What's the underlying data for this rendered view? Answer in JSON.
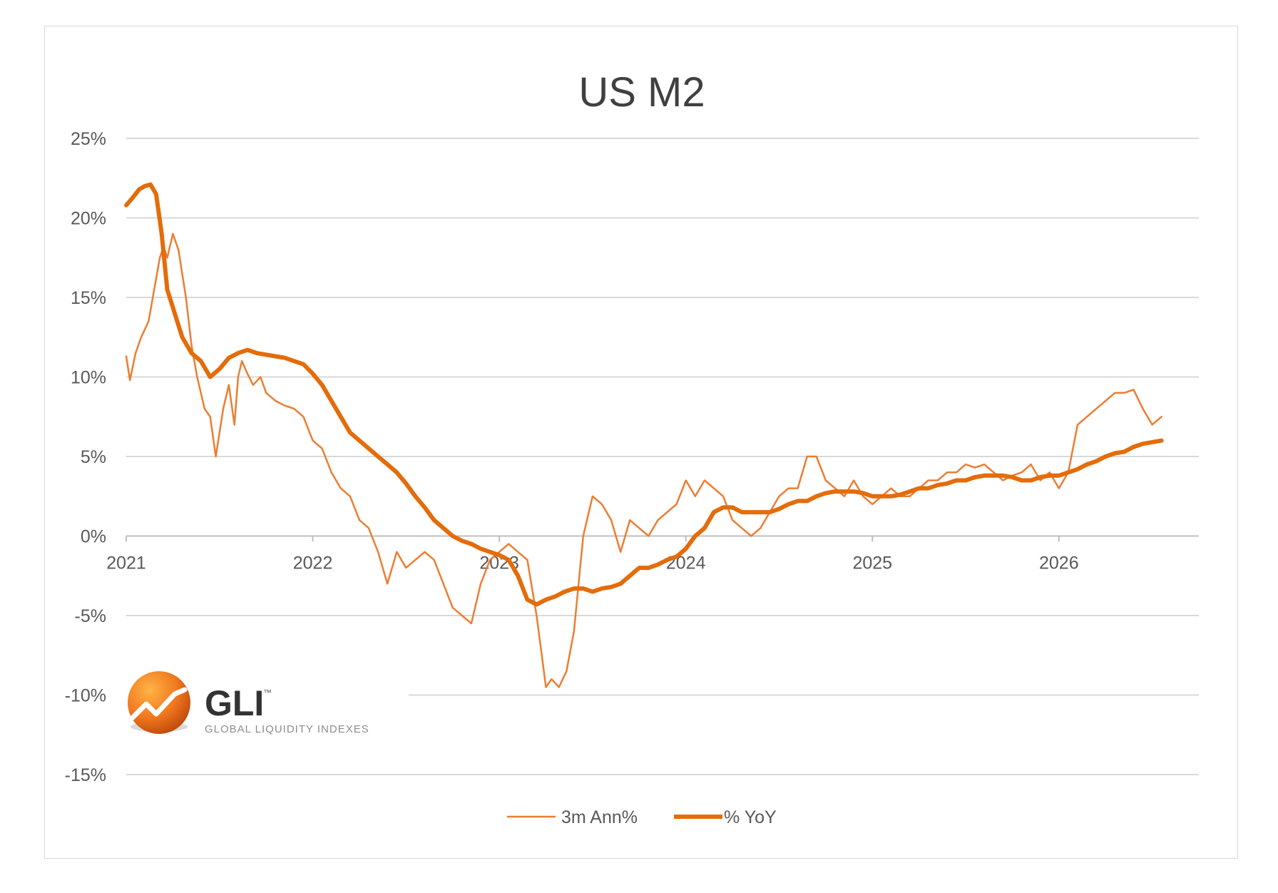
{
  "chart_data": {
    "type": "line",
    "title": "US M2",
    "xlabel": "",
    "ylabel": "",
    "x_ticks": [
      "2021",
      "2022",
      "2023",
      "2024",
      "2025",
      "2026"
    ],
    "y_ticks": [
      "25%",
      "20%",
      "15%",
      "10%",
      "5%",
      "0%",
      "-5%",
      "-10%",
      "-15%"
    ],
    "ylim": [
      -15,
      25
    ],
    "xlim": [
      2021.0,
      2026.75
    ],
    "grid": true,
    "legend_position": "bottom",
    "colors": {
      "three_month": "#ed7d31",
      "yoy": "#e46c0a"
    },
    "series": [
      {
        "name": "3m Ann%",
        "x": [
          2021.0,
          2021.02,
          2021.05,
          2021.08,
          2021.12,
          2021.15,
          2021.18,
          2021.2,
          2021.22,
          2021.25,
          2021.28,
          2021.32,
          2021.35,
          2021.38,
          2021.42,
          2021.45,
          2021.48,
          2021.52,
          2021.55,
          2021.58,
          2021.6,
          2021.62,
          2021.65,
          2021.68,
          2021.72,
          2021.75,
          2021.8,
          2021.85,
          2021.9,
          2021.95,
          2022.0,
          2022.05,
          2022.1,
          2022.15,
          2022.2,
          2022.25,
          2022.3,
          2022.35,
          2022.4,
          2022.45,
          2022.5,
          2022.55,
          2022.6,
          2022.65,
          2022.7,
          2022.75,
          2022.8,
          2022.85,
          2022.9,
          2022.95,
          2023.0,
          2023.05,
          2023.1,
          2023.15,
          2023.2,
          2023.25,
          2023.28,
          2023.32,
          2023.36,
          2023.4,
          2023.45,
          2023.5,
          2023.55,
          2023.6,
          2023.65,
          2023.7,
          2023.75,
          2023.8,
          2023.85,
          2023.9,
          2023.95,
          2024.0,
          2024.05,
          2024.1,
          2024.15,
          2024.2,
          2024.25,
          2024.3,
          2024.35,
          2024.4,
          2024.45,
          2024.5,
          2024.55,
          2024.6,
          2024.65,
          2024.7,
          2024.75,
          2024.8,
          2024.85,
          2024.9,
          2024.95,
          2025.0,
          2025.05,
          2025.1,
          2025.15,
          2025.2,
          2025.25,
          2025.3,
          2025.35,
          2025.4,
          2025.45,
          2025.5,
          2025.55,
          2025.6,
          2025.65,
          2025.7,
          2025.75,
          2025.8,
          2025.85,
          2025.9,
          2025.95,
          2026.0,
          2026.05,
          2026.1,
          2026.15,
          2026.2,
          2026.25,
          2026.3,
          2026.35,
          2026.4,
          2026.45,
          2026.5,
          2026.55
        ],
        "values": [
          11.3,
          9.8,
          11.5,
          12.5,
          13.5,
          15.5,
          17.5,
          18.2,
          17.5,
          19.0,
          18.0,
          15.0,
          12.0,
          10.0,
          8.0,
          7.5,
          5.0,
          8.0,
          9.5,
          7.0,
          10.0,
          11.0,
          10.2,
          9.5,
          10.0,
          9.0,
          8.5,
          8.2,
          8.0,
          7.5,
          6.0,
          5.5,
          4.0,
          3.0,
          2.5,
          1.0,
          0.5,
          -1.0,
          -3.0,
          -1.0,
          -2.0,
          -1.5,
          -1.0,
          -1.5,
          -3.0,
          -4.5,
          -5.0,
          -5.5,
          -3.0,
          -1.5,
          -1.0,
          -0.5,
          -1.0,
          -1.5,
          -5.0,
          -9.5,
          -9.0,
          -9.5,
          -8.5,
          -6.0,
          0.0,
          2.5,
          2.0,
          1.0,
          -1.0,
          1.0,
          0.5,
          0.0,
          1.0,
          1.5,
          2.0,
          3.5,
          2.5,
          3.5,
          3.0,
          2.5,
          1.0,
          0.5,
          0.0,
          0.5,
          1.5,
          2.5,
          3.0,
          3.0,
          5.0,
          5.0,
          3.5,
          3.0,
          2.5,
          3.5,
          2.5,
          2.0,
          2.5,
          3.0,
          2.5,
          2.5,
          3.0,
          3.5,
          3.5,
          4.0,
          4.0,
          4.5,
          4.3,
          4.5,
          4.0,
          3.5,
          3.8,
          4.0,
          4.5,
          3.5,
          4.0,
          3.0,
          4.0,
          7.0,
          7.5,
          8.0,
          8.5,
          9.0,
          9.0,
          9.2,
          8.0,
          7.0,
          7.5
        ]
      },
      {
        "name": "% YoY",
        "x": [
          2021.0,
          2021.03,
          2021.07,
          2021.1,
          2021.13,
          2021.16,
          2021.19,
          2021.22,
          2021.26,
          2021.3,
          2021.35,
          2021.4,
          2021.45,
          2021.5,
          2021.55,
          2021.6,
          2021.65,
          2021.7,
          2021.75,
          2021.8,
          2021.85,
          2021.9,
          2021.95,
          2022.0,
          2022.05,
          2022.1,
          2022.15,
          2022.2,
          2022.25,
          2022.3,
          2022.35,
          2022.4,
          2022.45,
          2022.5,
          2022.55,
          2022.6,
          2022.65,
          2022.7,
          2022.75,
          2022.8,
          2022.85,
          2022.9,
          2022.95,
          2023.0,
          2023.05,
          2023.1,
          2023.15,
          2023.2,
          2023.25,
          2023.3,
          2023.35,
          2023.4,
          2023.45,
          2023.5,
          2023.55,
          2023.6,
          2023.65,
          2023.7,
          2023.75,
          2023.8,
          2023.85,
          2023.9,
          2023.95,
          2024.0,
          2024.05,
          2024.1,
          2024.15,
          2024.2,
          2024.25,
          2024.3,
          2024.35,
          2024.4,
          2024.45,
          2024.5,
          2024.55,
          2024.6,
          2024.65,
          2024.7,
          2024.75,
          2024.8,
          2024.85,
          2024.9,
          2024.95,
          2025.0,
          2025.05,
          2025.1,
          2025.15,
          2025.2,
          2025.25,
          2025.3,
          2025.35,
          2025.4,
          2025.45,
          2025.5,
          2025.55,
          2025.6,
          2025.65,
          2025.7,
          2025.75,
          2025.8,
          2025.85,
          2025.9,
          2025.95,
          2026.0,
          2026.05,
          2026.1,
          2026.15,
          2026.2,
          2026.25,
          2026.3,
          2026.35,
          2026.4,
          2026.45,
          2026.5,
          2026.55
        ],
        "values": [
          20.8,
          21.2,
          21.8,
          22.0,
          22.1,
          21.5,
          19.0,
          15.5,
          14.0,
          12.5,
          11.5,
          11.0,
          10.0,
          10.5,
          11.2,
          11.5,
          11.7,
          11.5,
          11.4,
          11.3,
          11.2,
          11.0,
          10.8,
          10.2,
          9.5,
          8.5,
          7.5,
          6.5,
          6.0,
          5.5,
          5.0,
          4.5,
          4.0,
          3.3,
          2.5,
          1.8,
          1.0,
          0.5,
          0.0,
          -0.3,
          -0.5,
          -0.8,
          -1.0,
          -1.2,
          -1.5,
          -2.5,
          -4.0,
          -4.3,
          -4.0,
          -3.8,
          -3.5,
          -3.3,
          -3.3,
          -3.5,
          -3.3,
          -3.2,
          -3.0,
          -2.5,
          -2.0,
          -2.0,
          -1.8,
          -1.5,
          -1.3,
          -0.8,
          0.0,
          0.5,
          1.5,
          1.8,
          1.8,
          1.5,
          1.5,
          1.5,
          1.5,
          1.7,
          2.0,
          2.2,
          2.2,
          2.5,
          2.7,
          2.8,
          2.8,
          2.8,
          2.7,
          2.5,
          2.5,
          2.5,
          2.6,
          2.8,
          3.0,
          3.0,
          3.2,
          3.3,
          3.5,
          3.5,
          3.7,
          3.8,
          3.8,
          3.8,
          3.7,
          3.5,
          3.5,
          3.7,
          3.8,
          3.8,
          4.0,
          4.2,
          4.5,
          4.7,
          5.0,
          5.2,
          5.3,
          5.6,
          5.8,
          5.9,
          6.0
        ]
      }
    ]
  },
  "logo": {
    "name": "GLI",
    "tagline": "GLOBAL LIQUIDITY INDEXES",
    "trademark": "™"
  }
}
